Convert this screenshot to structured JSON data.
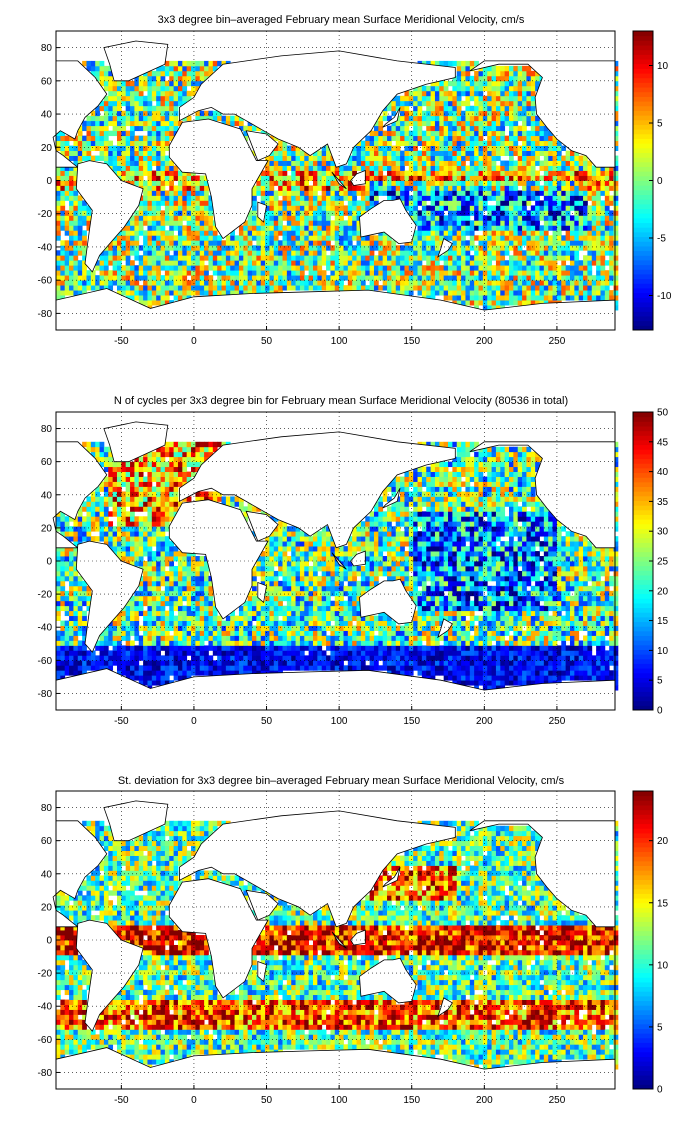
{
  "chart_data": [
    {
      "type": "heatmap",
      "title": "3x3 degree bin–averaged February mean Surface Meridional Velocity, cm/s",
      "xlabel": "",
      "ylabel": "",
      "xlim": [
        -95,
        290
      ],
      "ylim": [
        -90,
        90
      ],
      "x_ticks": [
        -50,
        0,
        50,
        100,
        150,
        200,
        250
      ],
      "y_ticks": [
        -80,
        -60,
        -40,
        -20,
        0,
        20,
        40,
        60,
        80
      ],
      "grid": "dotted",
      "colormap": "jet",
      "colorbar": {
        "min": -13,
        "max": 13,
        "ticks": [
          -10,
          -5,
          0,
          5,
          10
        ]
      },
      "bin_size_deg": 3,
      "pattern": "signed velocity field, blue bands south of the equator in the Pacific, red patches near the equator and western boundaries"
    },
    {
      "type": "heatmap",
      "title": "N of cycles per 3x3 degree bin for February mean Surface Meridional Velocity (80536 in total)",
      "xlabel": "",
      "ylabel": "",
      "xlim": [
        -95,
        290
      ],
      "ylim": [
        -90,
        90
      ],
      "x_ticks": [
        -50,
        0,
        50,
        100,
        150,
        200,
        250
      ],
      "y_ticks": [
        -80,
        -60,
        -40,
        -20,
        0,
        20,
        40,
        60,
        80
      ],
      "grid": "dotted",
      "colormap": "jet",
      "colorbar": {
        "min": 0,
        "max": 50,
        "ticks": [
          0,
          5,
          10,
          15,
          20,
          25,
          30,
          35,
          40,
          45,
          50
        ]
      },
      "bin_size_deg": 3,
      "pattern": "counts high in North Atlantic and Indian Ocean, low in Southern Ocean and equatorial Pacific"
    },
    {
      "type": "heatmap",
      "title": "St. deviation for 3x3 degree bin–averaged February mean Surface Meridional Velocity, cm/s",
      "xlabel": "",
      "ylabel": "",
      "xlim": [
        -95,
        290
      ],
      "ylim": [
        -90,
        90
      ],
      "x_ticks": [
        -50,
        0,
        50,
        100,
        150,
        200,
        250
      ],
      "y_ticks": [
        -80,
        -60,
        -40,
        -20,
        0,
        20,
        40,
        60,
        80
      ],
      "grid": "dotted",
      "colormap": "jet",
      "colorbar": {
        "min": 0,
        "max": 24,
        "ticks": [
          0,
          5,
          10,
          15,
          20
        ]
      },
      "bin_size_deg": 3,
      "pattern": "high variability along the equator, western boundary currents and Antarctic Circumpolar Current"
    }
  ]
}
